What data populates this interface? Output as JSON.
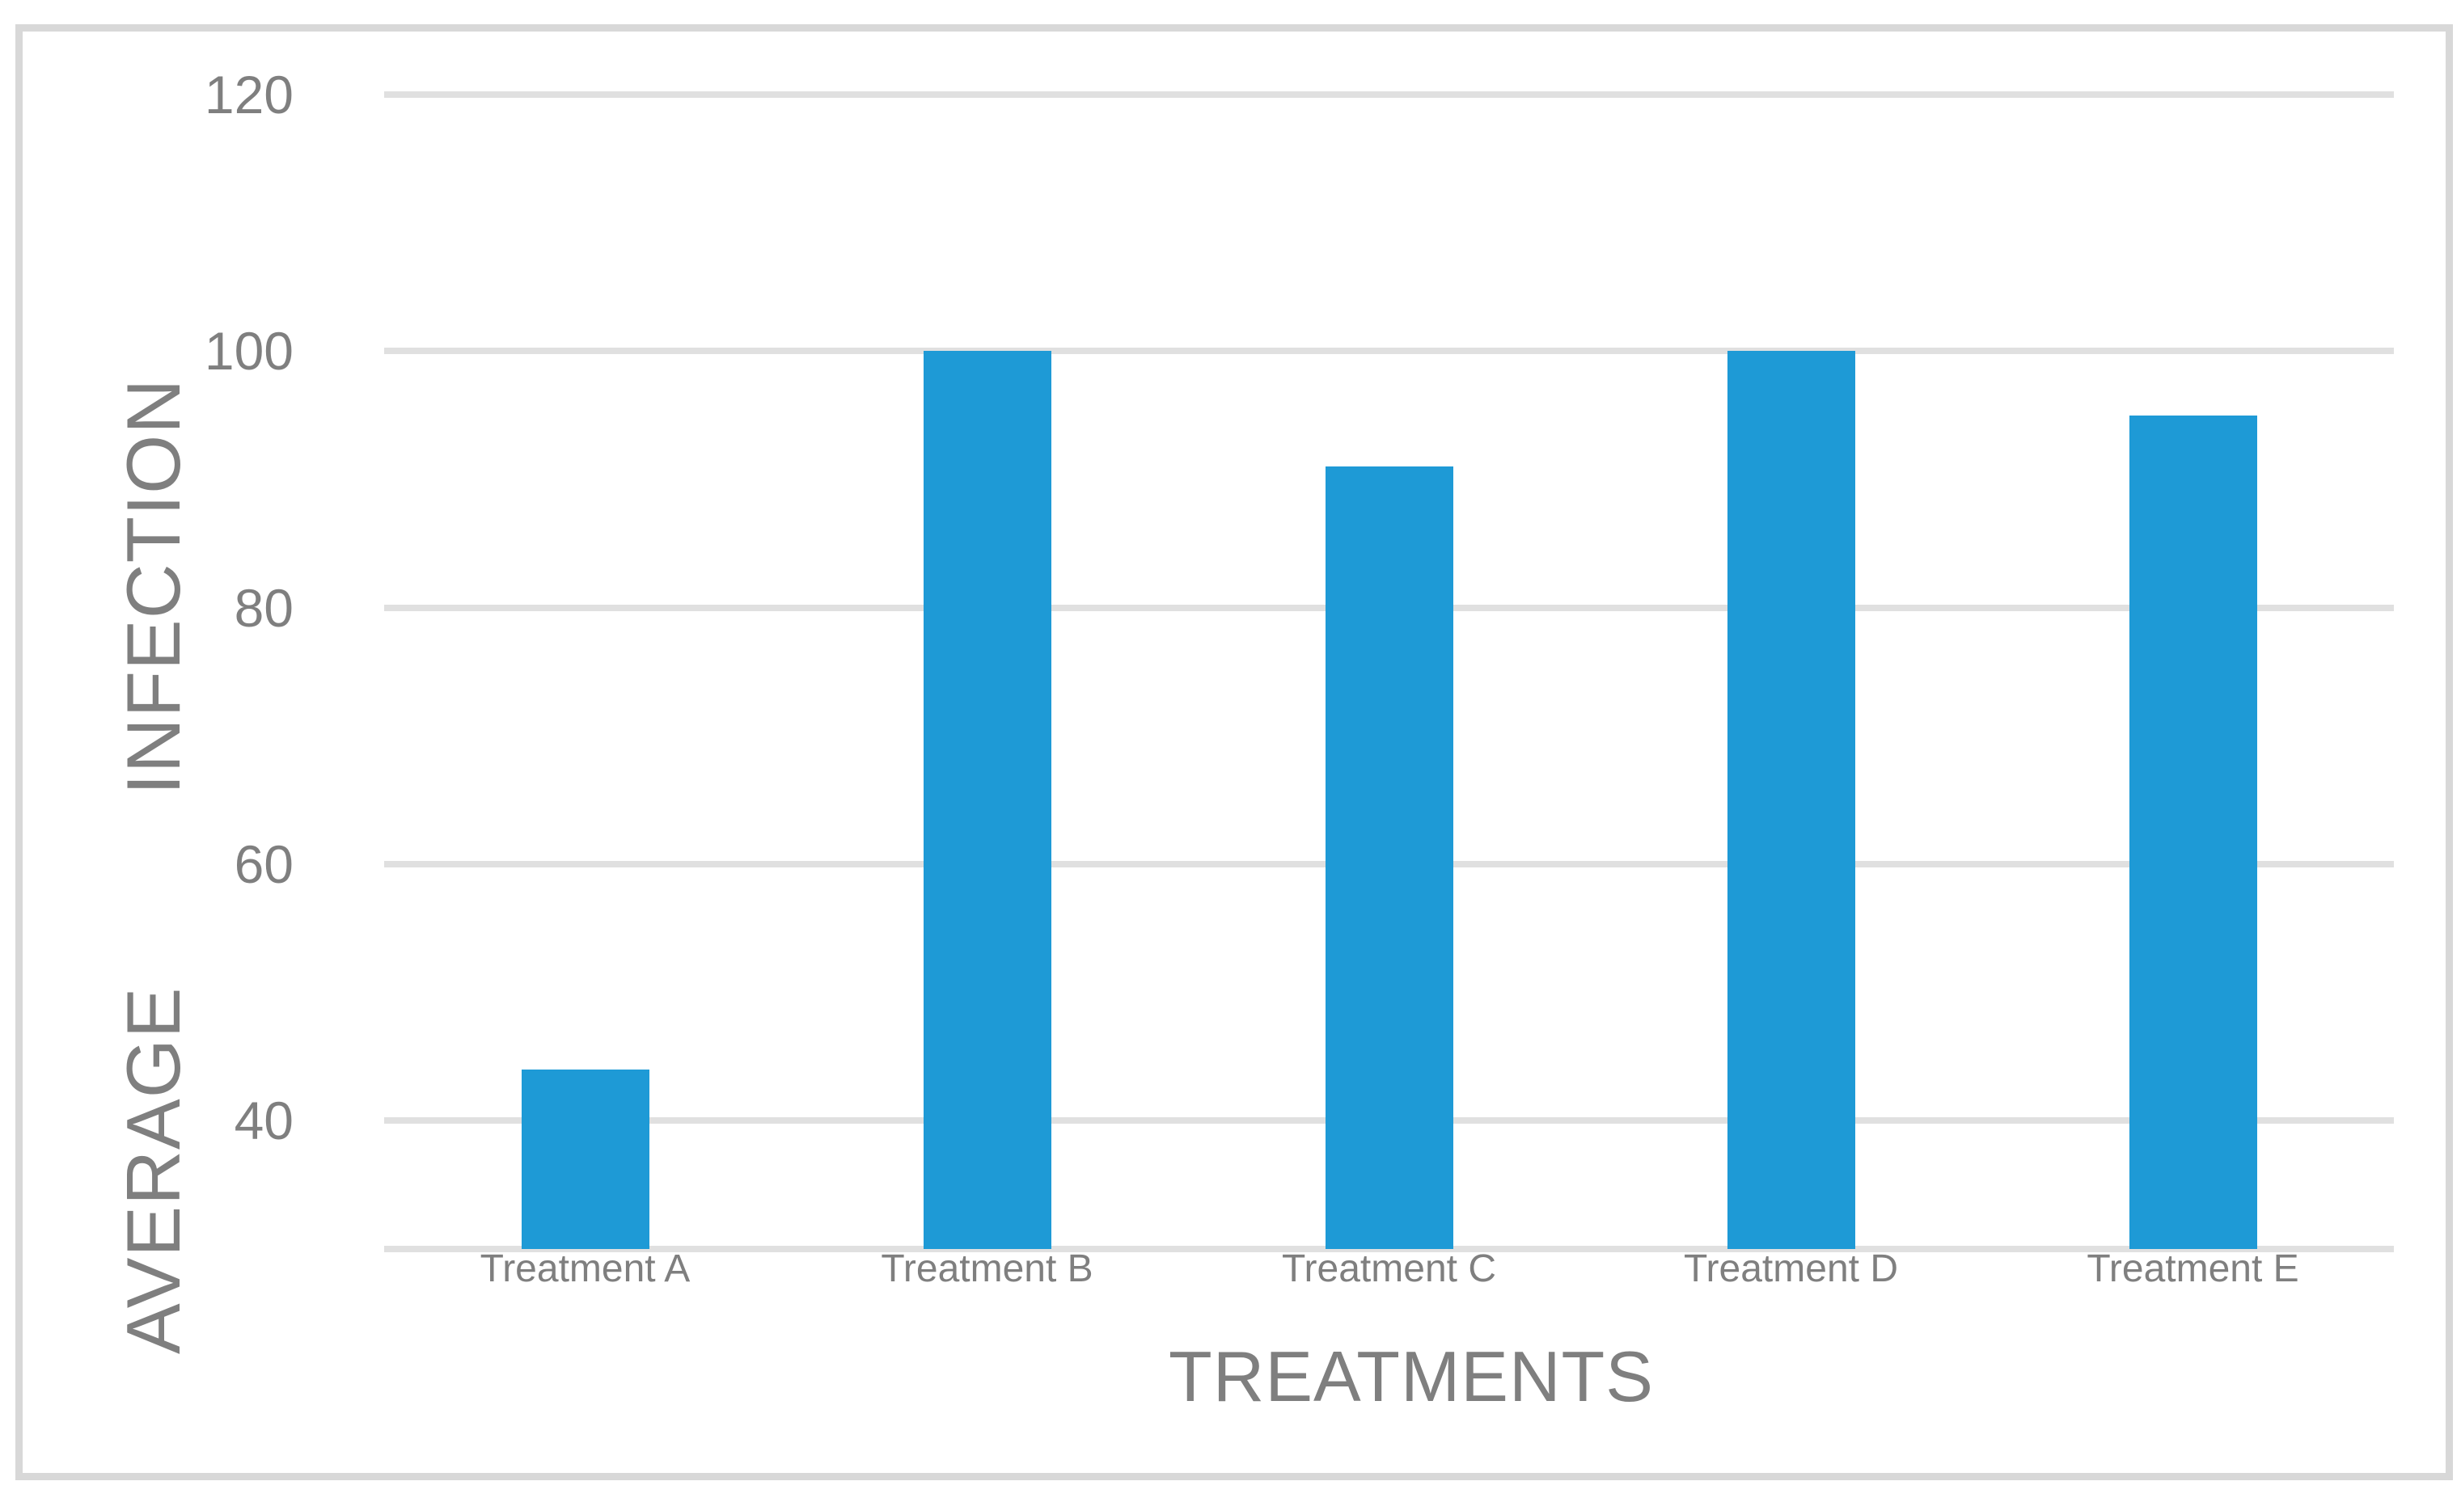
{
  "figure": {
    "background_color": "#ffffff",
    "border_color": "#d8d8d8"
  },
  "chart_data": {
    "type": "bar",
    "title": "",
    "categories": [
      "Treatment A",
      "Treatment B",
      "Treatment C",
      "Treatment D",
      "Treatment E"
    ],
    "values": [
      44,
      100,
      91,
      100,
      95
    ],
    "xlabel": "TREATMENTS",
    "ylabel": "AVERAGE INFECTION",
    "yticks": [
      120,
      100,
      80,
      60,
      40
    ],
    "ylim": [
      30,
      120
    ],
    "grid": true,
    "legend": false,
    "bar_color": "#1e9ad6",
    "gridline_color": "#e0e0e0",
    "axis_line_color": "#e0e0e0",
    "text_color": "#7f7f7f"
  }
}
